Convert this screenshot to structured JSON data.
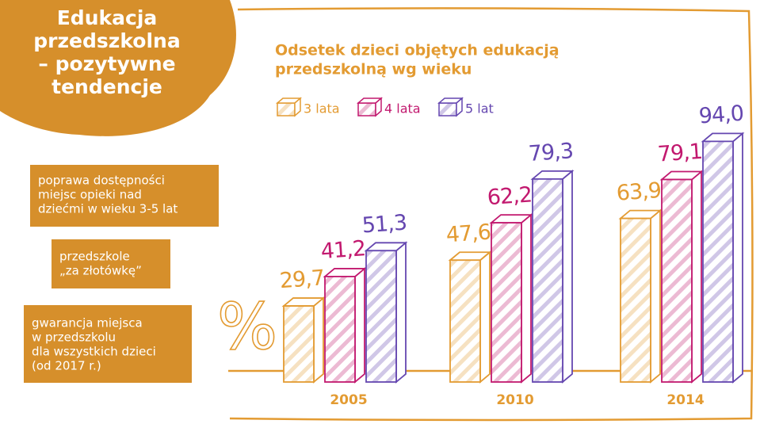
{
  "header": {
    "title": [
      "Edukacja",
      "przedszkolna",
      "– pozytywne",
      "tendencje"
    ]
  },
  "notes": [
    [
      "poprawa dostępności",
      "miejsc opieki nad",
      "dziećmi w wieku 3-5 lat"
    ],
    [
      "przedszkole",
      "„za złotówkę”"
    ],
    [
      "gwarancja miejsca",
      "w przedszkolu",
      "dla wszystkich dzieci",
      "(od 2017 r.)"
    ]
  ],
  "chart_data": {
    "type": "bar",
    "title": [
      "Odsetek dzieci objętych edukacją",
      "przedszkolną wg wieku"
    ],
    "y_label": "%",
    "categories": [
      "2005",
      "2010",
      "2014"
    ],
    "series": [
      {
        "name": "3 lata",
        "color": "#e39b32",
        "values": [
          29.7,
          47.6,
          63.9
        ],
        "value_labels": [
          "29,7",
          "47,6",
          "63,9"
        ]
      },
      {
        "name": "4 lata",
        "color": "#c2196f",
        "values": [
          41.2,
          62.2,
          79.1
        ],
        "value_labels": [
          "41,2",
          "62,2",
          "79,1"
        ]
      },
      {
        "name": "5 lat",
        "color": "#6547b0",
        "values": [
          51.3,
          79.3,
          94.0
        ],
        "value_labels": [
          "51,3",
          "79,3",
          "94,0"
        ]
      }
    ],
    "ylim": [
      0,
      100
    ]
  }
}
